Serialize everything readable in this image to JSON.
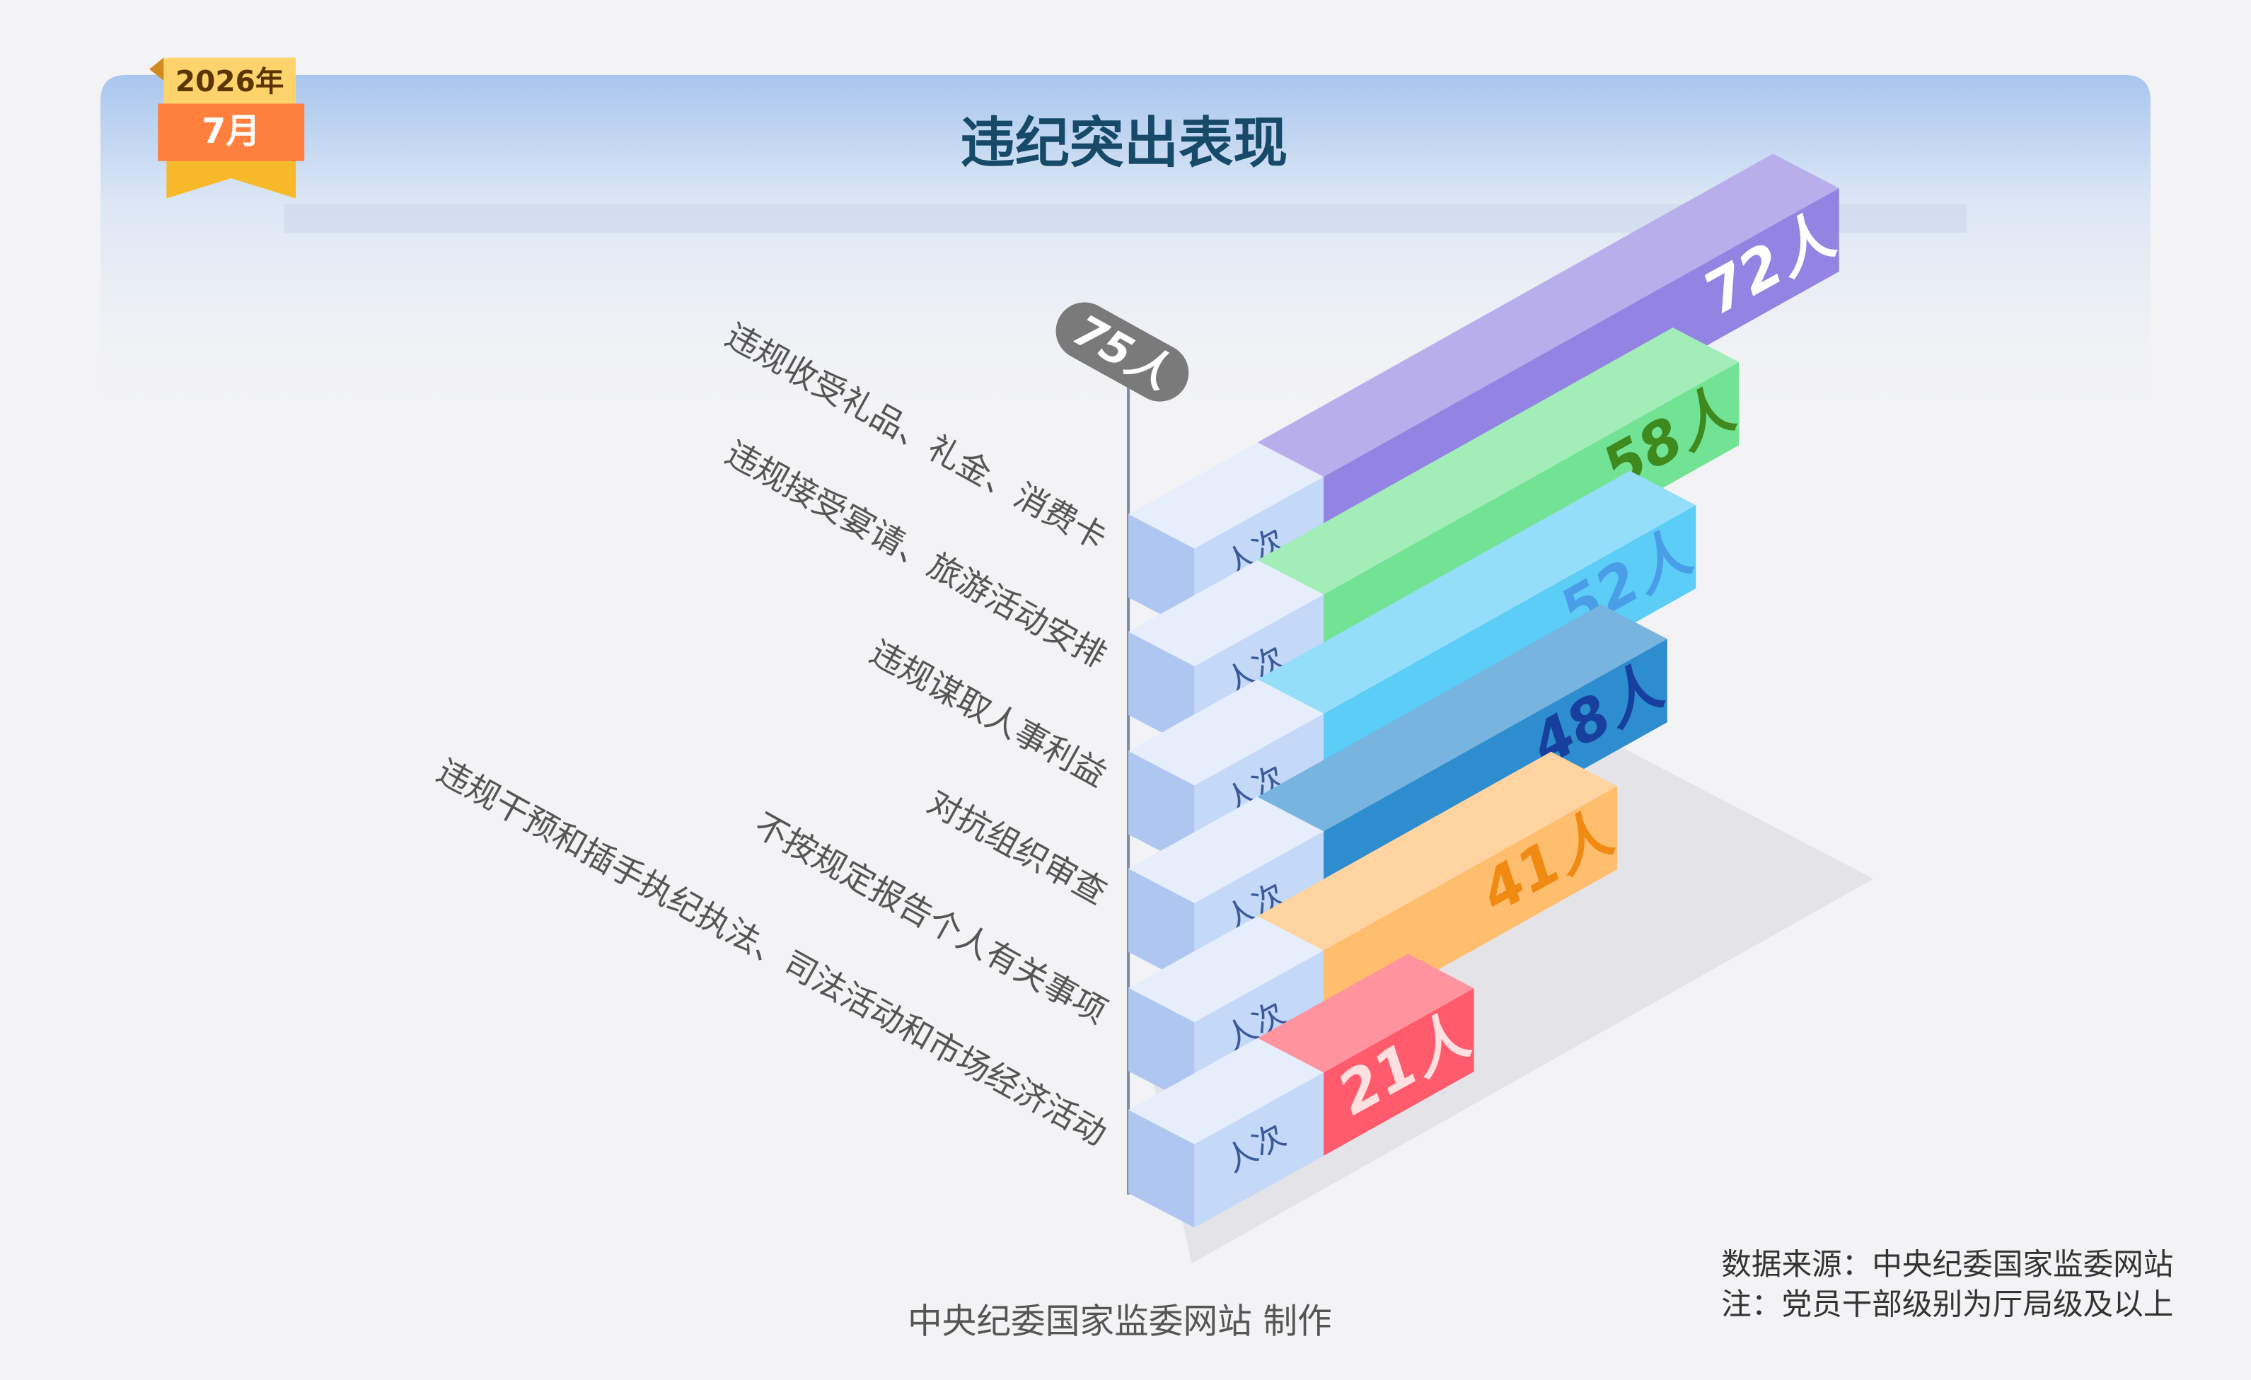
{
  "chart_data": {
    "type": "bar",
    "title": "违纪突出表现",
    "badge": {
      "year": "2026年",
      "month": "7月"
    },
    "categories": [
      "违规收受礼品、礼金、消费卡",
      "违规接受宴请、旅游活动安排",
      "违规谋取人事利益",
      "对抗组织审查",
      "不按规定报告个人有关事项",
      "违规干预和插手执纪执法、司法活动和市场经济活动"
    ],
    "values": [
      72,
      58,
      52,
      48,
      41,
      21
    ],
    "value_labels": [
      "72人",
      "58人",
      "52人",
      "48人",
      "41人",
      "21人"
    ],
    "colors": [
      "#9383e2",
      "#72e394",
      "#5ccdf7",
      "#2e8dce",
      "#ffbe6e",
      "#ff5b6c"
    ],
    "label_colors": [
      "#ffffff",
      "#3f8a1e",
      "#4a9ee8",
      "#173f9e",
      "#f08a12",
      "#ffe0e0"
    ],
    "unit": "人次",
    "xlim": [
      0,
      75
    ],
    "xticks": [
      {
        "value": 75,
        "label": "75人"
      }
    ],
    "source": "数据来源：中央纪委国家监委网站",
    "note": "注：党员干部级别为厅局级及以上",
    "credit": "中央纪委国家监委网站 制作"
  }
}
